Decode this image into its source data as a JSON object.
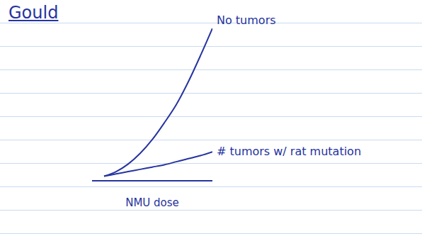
{
  "chart_data": {
    "type": "line",
    "title": "Gould",
    "x_label": "NMU dose",
    "x": [
      1,
      2,
      3,
      4,
      5,
      6,
      7,
      8,
      9,
      10
    ],
    "series": [
      {
        "name": "No tumors",
        "color": "#2634a0",
        "values": [
          0.3,
          0.6,
          1.1,
          1.8,
          2.7,
          3.8,
          5.0,
          6.5,
          8.2,
          10
        ]
      },
      {
        "name": "# tumors w/ rat mutation",
        "color": "#2634a0",
        "values": [
          0.3,
          0.45,
          0.6,
          0.75,
          0.9,
          1.05,
          1.25,
          1.45,
          1.65,
          1.9
        ]
      }
    ],
    "xlim": [
      0,
      10
    ],
    "ylim": [
      0,
      10
    ],
    "tick_labels": false
  }
}
